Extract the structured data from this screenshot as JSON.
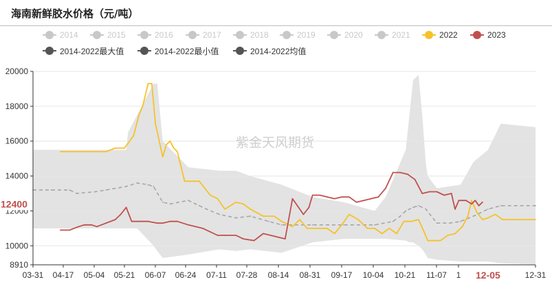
{
  "title": "海南新鲜胶水价格（元/吨）",
  "watermark": "紫金天风期货",
  "colors": {
    "band": "#e3e3e3",
    "mean": "#a6a6a6",
    "y2022": "#f5c22b",
    "y2023": "#c0504d",
    "muted": "#c8c8c8",
    "dark": "#555555",
    "grid": "#e6e6e6"
  },
  "legend": {
    "row1": [
      {
        "label": "2014",
        "state": "hidden"
      },
      {
        "label": "2015",
        "state": "hidden"
      },
      {
        "label": "2016",
        "state": "hidden"
      },
      {
        "label": "2017",
        "state": "hidden"
      },
      {
        "label": "2018",
        "state": "hidden"
      },
      {
        "label": "2019",
        "state": "hidden"
      },
      {
        "label": "2020",
        "state": "hidden"
      },
      {
        "label": "2021",
        "state": "hidden"
      },
      {
        "label": "2022",
        "state": "y2022"
      },
      {
        "label": "2023",
        "state": "y2023"
      }
    ],
    "row2": [
      {
        "label": "2014-2022最大值",
        "state": "stat"
      },
      {
        "label": "2014-2022最小值",
        "state": "stat"
      },
      {
        "label": "2014-2022均值",
        "state": "stat"
      }
    ]
  },
  "chart_data": {
    "type": "line",
    "title": "海南新鲜胶水价格（元/吨）",
    "x_type": "date (MM-DD)",
    "xlim": [
      "03-31",
      "12-31"
    ],
    "ylim": [
      8910,
      20000
    ],
    "x_ticks": [
      "03-31",
      "04-17",
      "05-04",
      "05-21",
      "06-07",
      "06-24",
      "07-11",
      "07-28",
      "08-14",
      "08-31",
      "09-17",
      "10-04",
      "10-21",
      "11-07",
      "1",
      "12-31"
    ],
    "y_ticks": [
      8910,
      10000,
      12000,
      14000,
      16000,
      18000,
      20000
    ],
    "markers": {
      "x": {
        "label": "12-05",
        "value": "12-05"
      },
      "y": {
        "label": "12400",
        "value": 12400
      }
    },
    "range_band": {
      "x": [
        "03-31",
        "04-16",
        "04-17",
        "05-04",
        "05-21",
        "05-22",
        "05-27",
        "06-05",
        "06-07",
        "06-10",
        "06-24",
        "07-11",
        "07-20",
        "07-28",
        "08-14",
        "08-31",
        "09-17",
        "10-04",
        "10-10",
        "10-21",
        "10-23",
        "10-25",
        "10-28",
        "10-30",
        "11-01",
        "11-02",
        "11-07",
        "11-20",
        "11-27",
        "12-05",
        "12-12",
        "12-31"
      ],
      "max": [
        15500,
        15500,
        15500,
        15500,
        15500,
        16500,
        17500,
        19300,
        19300,
        16000,
        14500,
        14300,
        14300,
        14000,
        13500,
        12800,
        12500,
        12000,
        12800,
        15500,
        17500,
        19500,
        19800,
        17500,
        14700,
        14000,
        13300,
        13500,
        14800,
        15500,
        17000,
        16800
      ],
      "min": [
        11000,
        11000,
        11000,
        11000,
        11000,
        11000,
        11000,
        10000,
        9700,
        9300,
        9500,
        9800,
        9700,
        9800,
        9600,
        10200,
        10400,
        10400,
        10400,
        10300,
        10200,
        10200,
        10000,
        9800,
        9500,
        9300,
        9200,
        9100,
        9100,
        9100,
        9000,
        8950
      ]
    },
    "series": [
      {
        "name": "2014-2022均值",
        "style": "dashed",
        "x": [
          "03-31",
          "04-10",
          "04-20",
          "04-24",
          "05-04",
          "05-10",
          "05-21",
          "05-27",
          "06-02",
          "06-05",
          "06-10",
          "06-14",
          "06-24",
          "06-30",
          "07-04",
          "07-11",
          "07-20",
          "07-28",
          "08-07",
          "08-14",
          "08-31",
          "09-17",
          "10-04",
          "10-14",
          "10-18",
          "10-21",
          "10-25",
          "10-28",
          "11-01",
          "11-07",
          "11-14",
          "11-20",
          "11-27",
          "12-05",
          "12-12",
          "12-20",
          "12-31"
        ],
        "y": [
          13200,
          13200,
          13200,
          13000,
          13100,
          13200,
          13400,
          13600,
          13500,
          13400,
          12500,
          12400,
          12600,
          12300,
          12100,
          11800,
          11600,
          11700,
          11400,
          11200,
          11200,
          11200,
          11200,
          11400,
          11700,
          12000,
          12200,
          12300,
          12100,
          11300,
          11300,
          11400,
          11700,
          12100,
          12300,
          12300,
          12300
        ]
      },
      {
        "name": "2022",
        "x": [
          "04-15",
          "04-20",
          "04-25",
          "04-30",
          "05-05",
          "05-10",
          "05-15",
          "05-20",
          "05-25",
          "05-28",
          "05-30",
          "06-02",
          "06-04",
          "06-06",
          "06-10",
          "06-12",
          "06-14",
          "06-16",
          "06-18",
          "06-22",
          "06-25",
          "06-30",
          "07-06",
          "07-10",
          "07-14",
          "07-20",
          "07-24",
          "07-28",
          "08-04",
          "08-10",
          "08-14",
          "08-20",
          "08-24",
          "08-28",
          "09-02",
          "09-08",
          "09-12",
          "09-16",
          "09-20",
          "09-25",
          "09-30",
          "10-04",
          "10-08",
          "10-12",
          "10-16",
          "10-20",
          "10-24",
          "10-28",
          "10-31",
          "11-02",
          "11-05",
          "11-09",
          "11-13",
          "11-17",
          "11-21",
          "11-24",
          "11-26",
          "11-29",
          "12-02",
          "12-05",
          "12-09",
          "12-13",
          "12-20",
          "12-31"
        ],
        "y": [
          15400,
          15400,
          15400,
          15400,
          15400,
          15400,
          15600,
          15600,
          16300,
          17500,
          18000,
          19300,
          19300,
          17000,
          15100,
          15800,
          16000,
          15600,
          15400,
          13700,
          13700,
          13700,
          12900,
          12700,
          12100,
          12500,
          12400,
          12100,
          11700,
          11700,
          11400,
          11100,
          11500,
          11000,
          11000,
          11000,
          10700,
          11200,
          11800,
          11500,
          11000,
          11000,
          10700,
          11000,
          10700,
          11400,
          11400,
          11500,
          10800,
          10300,
          10300,
          10300,
          10600,
          10700,
          11100,
          11700,
          12600,
          11900,
          11500,
          11600,
          11800,
          11500,
          11500,
          11500
        ]
      },
      {
        "name": "2023",
        "x": [
          "04-15",
          "04-20",
          "04-25",
          "04-28",
          "05-02",
          "05-05",
          "05-10",
          "05-15",
          "05-18",
          "05-21",
          "05-24",
          "05-27",
          "06-02",
          "06-07",
          "06-10",
          "06-14",
          "06-18",
          "06-24",
          "07-02",
          "07-06",
          "07-10",
          "07-14",
          "07-20",
          "07-24",
          "07-30",
          "08-04",
          "08-08",
          "08-12",
          "08-16",
          "08-20",
          "08-26",
          "08-29",
          "08-31",
          "09-02",
          "09-04",
          "09-08",
          "09-12",
          "09-16",
          "09-20",
          "09-24",
          "09-28",
          "10-02",
          "10-06",
          "10-10",
          "10-14",
          "10-18",
          "10-22",
          "10-26",
          "10-30",
          "11-03",
          "11-07",
          "11-11",
          "11-15",
          "11-17",
          "11-19",
          "11-21",
          "11-23",
          "11-26",
          "11-28",
          "11-30",
          "12-02"
        ],
        "y": [
          10900,
          10900,
          11100,
          11200,
          11200,
          11100,
          11300,
          11500,
          11800,
          12200,
          11400,
          11400,
          11400,
          11300,
          11300,
          11400,
          11400,
          11200,
          11000,
          10800,
          10600,
          10600,
          10600,
          10400,
          10300,
          10700,
          10600,
          10500,
          10400,
          12700,
          11800,
          12200,
          12900,
          12900,
          12900,
          12800,
          12700,
          12800,
          12800,
          12500,
          12600,
          12700,
          12800,
          13300,
          14200,
          14200,
          14100,
          13800,
          13000,
          13100,
          13100,
          12900,
          13000,
          12100,
          12600,
          12600,
          12600,
          12400,
          12600,
          12300,
          12500
        ]
      }
    ]
  }
}
